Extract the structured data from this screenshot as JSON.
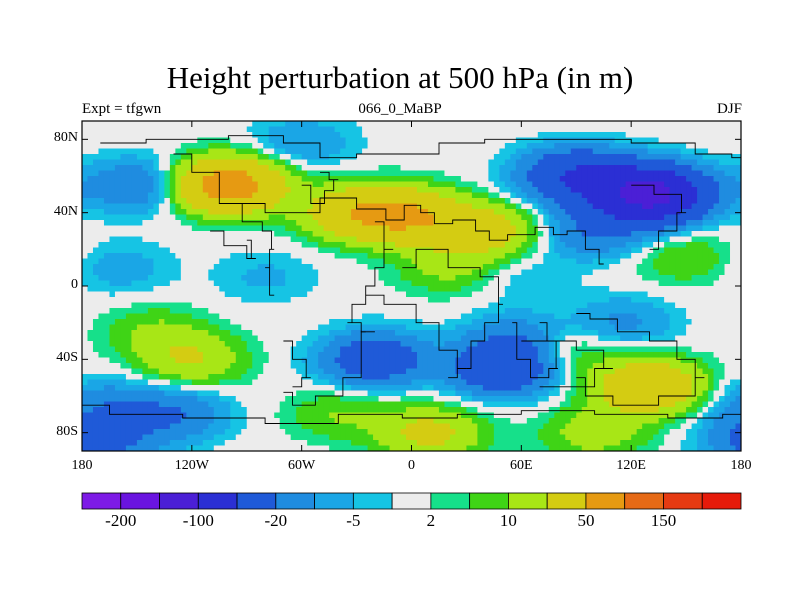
{
  "title": "Height perturbation at 500 hPa (in m)",
  "subtitle_left": "Expt = tfgwn",
  "subtitle_center": "066_0_MaBP",
  "subtitle_right": "DJF",
  "chart_data": {
    "type": "heatmap",
    "variable": "Height perturbation",
    "units": "m",
    "level": "500 hPa",
    "lon_range": [
      -180,
      180
    ],
    "lat_range": [
      -90,
      90
    ],
    "x_ticks": [
      "180",
      "120W",
      "60W",
      "0",
      "60E",
      "120E",
      "180"
    ],
    "y_ticks": [
      "80N",
      "40N",
      "0",
      "40S",
      "80S"
    ],
    "colorbar": {
      "labels": [
        "-200",
        "-100",
        "-20",
        "-5",
        "2",
        "10",
        "50",
        "150"
      ],
      "colors": [
        "#7d1ae6",
        "#6a14e0",
        "#4b1fd6",
        "#2b2fd4",
        "#1f5ad8",
        "#1f8ce0",
        "#1aa6e6",
        "#16c4e4",
        "#ececec",
        "#16e08a",
        "#3fd416",
        "#a8e616",
        "#d4cc12",
        "#e69a12",
        "#e66a16",
        "#e63a12",
        "#e61a0a"
      ]
    },
    "anomaly_centers": [
      {
        "lon": -100,
        "lat": 55,
        "value": 70
      },
      {
        "lon": -30,
        "lat": 40,
        "value": 40
      },
      {
        "lon": 0,
        "lat": 38,
        "value": 45
      },
      {
        "lon": 40,
        "lat": 30,
        "value": 30
      },
      {
        "lon": -150,
        "lat": 55,
        "value": -20
      },
      {
        "lon": -60,
        "lat": 78,
        "value": -10
      },
      {
        "lon": 130,
        "lat": 50,
        "value": -120
      },
      {
        "lon": 90,
        "lat": 60,
        "value": -50
      },
      {
        "lon": 100,
        "lat": 30,
        "value": -20
      },
      {
        "lon": 150,
        "lat": 15,
        "value": 10
      },
      {
        "lon": 20,
        "lat": 10,
        "value": 12
      },
      {
        "lon": -140,
        "lat": -25,
        "value": 10
      },
      {
        "lon": -120,
        "lat": -40,
        "value": 20
      },
      {
        "lon": -20,
        "lat": -40,
        "value": -35
      },
      {
        "lon": 50,
        "lat": -45,
        "value": -40
      },
      {
        "lon": 60,
        "lat": -30,
        "value": -20
      },
      {
        "lon": 80,
        "lat": -35,
        "value": 15
      },
      {
        "lon": 115,
        "lat": -20,
        "value": -12
      },
      {
        "lon": 130,
        "lat": -55,
        "value": 45
      },
      {
        "lon": -130,
        "lat": -70,
        "value": -20
      },
      {
        "lon": -170,
        "lat": -65,
        "value": -15
      },
      {
        "lon": 10,
        "lat": -80,
        "value": 25
      },
      {
        "lon": 100,
        "lat": -80,
        "value": 15
      },
      {
        "lon": -160,
        "lat": 10,
        "value": -8
      },
      {
        "lon": -80,
        "lat": 5,
        "value": -6
      },
      {
        "lon": 60,
        "lat": 5,
        "value": -5
      },
      {
        "lon": -40,
        "lat": -70,
        "value": 10
      },
      {
        "lon": -170,
        "lat": -85,
        "value": -25
      }
    ]
  }
}
